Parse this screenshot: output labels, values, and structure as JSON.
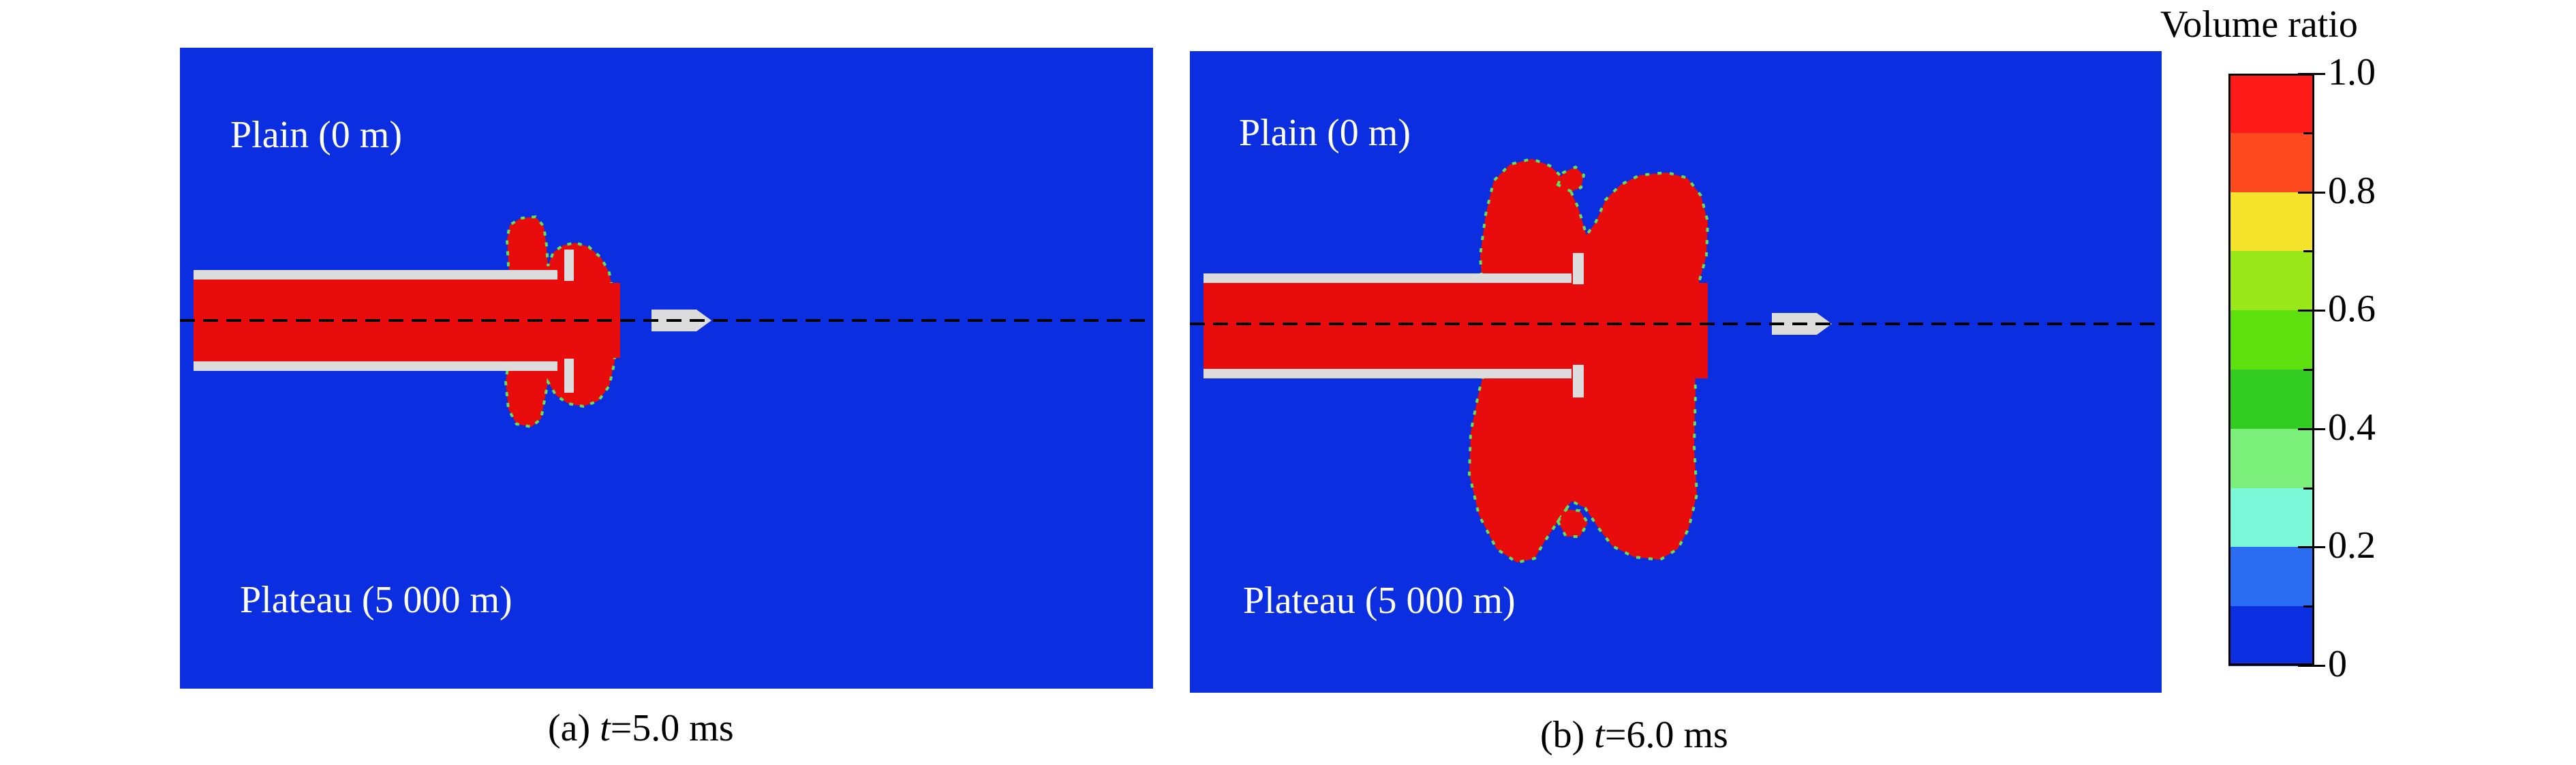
{
  "panels": [
    {
      "top_label": "Plain (0 m)",
      "bottom_label": "Plateau (5 000 m)",
      "caption_prefix": "(a) ",
      "caption_var": "t",
      "caption_value": "=5.0 ms"
    },
    {
      "top_label": "Plain (0 m)",
      "bottom_label": "Plateau (5 000 m)",
      "caption_prefix": "(b) ",
      "caption_var": "t",
      "caption_value": "=6.0 ms"
    }
  ],
  "colorbar": {
    "title": "Volume ratio",
    "tick_labels": [
      "1.0",
      "0.8",
      "0.6",
      "0.4",
      "0.2",
      "0"
    ],
    "colors": [
      "#ff1a1a",
      "#ff4a1f",
      "#f5e22b",
      "#9be81a",
      "#5ee00e",
      "#33cc22",
      "#7af07a",
      "#7af8d8",
      "#2a6cf2",
      "#0a2ee0"
    ]
  },
  "colors": {
    "background": "#0a2ee0",
    "gas": "#e80c0c",
    "barrel": "#dcdcdc",
    "interface": "#5ee05e"
  }
}
